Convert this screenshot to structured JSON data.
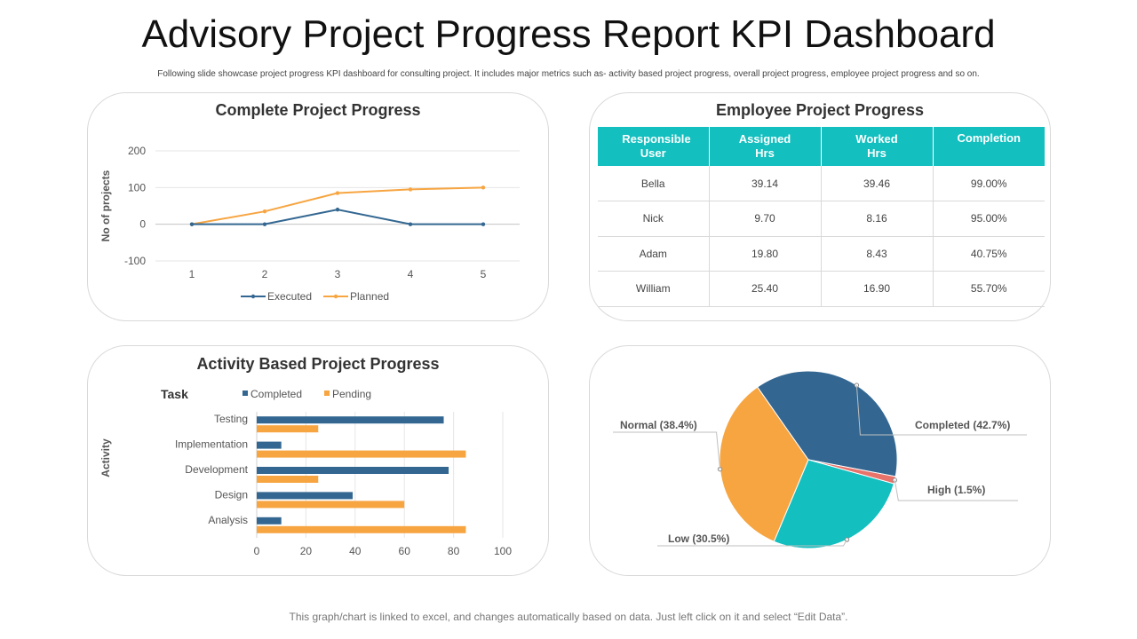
{
  "page": {
    "title": "Advisory Project Progress Report KPI Dashboard",
    "subtitle": "Following slide showcase project progress KPI dashboard for consulting project. It includes major metrics such as- activity based project progress, overall project progress, employee project progress and so on.",
    "footer": "This graph/chart is linked to excel, and changes automatically based on data. Just left click on it and select “Edit Data”."
  },
  "colors": {
    "blue": "#336791",
    "orange": "#f7a541",
    "teal": "#13bfbf",
    "red": "#e8736b",
    "grid": "#e6e6e6"
  },
  "employee_table": {
    "title": "Employee Project Progress",
    "headers": [
      "Responsible User",
      "Assigned Hrs",
      "Worked Hrs",
      "Completion"
    ],
    "rows": [
      [
        "Bella",
        "39.14",
        "39.46",
        "99.00%"
      ],
      [
        "Nick",
        "9.70",
        "8.16",
        "95.00%"
      ],
      [
        "Adam",
        "19.80",
        "8.43",
        "40.75%"
      ],
      [
        "William",
        "25.40",
        "16.90",
        "55.70%"
      ]
    ]
  },
  "chart_data": [
    {
      "type": "line",
      "title": "Complete Project Progress",
      "x": [
        1,
        2,
        3,
        4,
        5
      ],
      "series": [
        {
          "name": "Executed",
          "values": [
            0,
            0,
            40,
            0,
            0
          ]
        },
        {
          "name": "Planned",
          "values": [
            0,
            35,
            85,
            95,
            100
          ]
        }
      ],
      "xlabel": "",
      "ylabel": "No of projects",
      "ylim": [
        -100,
        200
      ],
      "yticks": [
        -100,
        0,
        100,
        200
      ],
      "legend": "bottom"
    },
    {
      "type": "bar",
      "orientation": "horizontal",
      "title": "Activity Based Project Progress",
      "legend_title": "Task",
      "categories": [
        "Testing",
        "Implementation",
        "Development",
        "Design",
        "Analysis"
      ],
      "series": [
        {
          "name": "Completed",
          "values": [
            76,
            10,
            78,
            39,
            10
          ]
        },
        {
          "name": "Pending",
          "values": [
            25,
            85,
            25,
            60,
            85
          ]
        }
      ],
      "ylabel": "Activity",
      "xlim": [
        0,
        100
      ],
      "xticks": [
        0,
        20,
        40,
        60,
        80,
        100
      ],
      "legend": "top"
    },
    {
      "type": "pie",
      "slices": [
        {
          "label": "Completed (42.7%)",
          "name": "Completed",
          "value": 42.7
        },
        {
          "label": "High (1.5%)",
          "name": "High",
          "value": 1.5
        },
        {
          "label": "Low (30.5%)",
          "name": "Low",
          "value": 30.5
        },
        {
          "label": "Normal (38.4%)",
          "name": "Normal",
          "value": 38.4
        }
      ]
    }
  ]
}
